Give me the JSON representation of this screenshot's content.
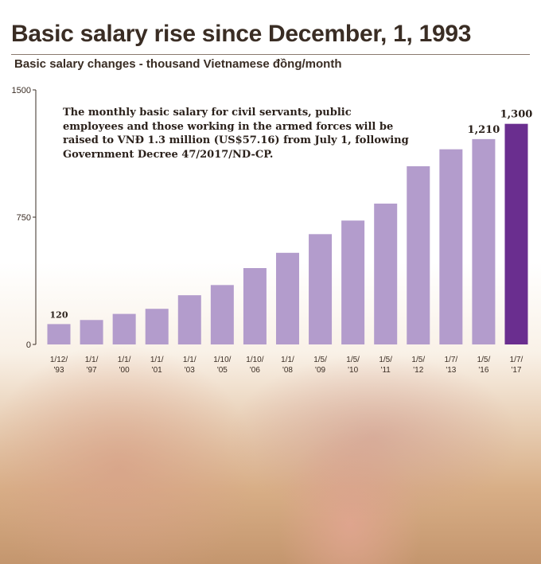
{
  "header": {
    "title": "Basic salary rise since December, 1, 1993",
    "subtitle": "Basic salary changes - thousand Vietnamese đồng/month"
  },
  "annotation": "The monthly basic salary for civil servants, public employees and those working in the armed forces will be raised to VNĐ 1.3 million  (US$57.16) from July 1, following Government Decree 47/2017/ND-CP.",
  "colors": {
    "bar": "#b39ccc",
    "bar_highlight": "#6a2e8f",
    "text": "#3a2d24"
  },
  "chart_data": {
    "type": "bar",
    "categories": [
      "1/12/\n'93",
      "1/1/\n'97",
      "1/1/\n'00",
      "1/1/\n'01",
      "1/1/\n'03",
      "1/10/\n'05",
      "1/10/\n'06",
      "1/1/\n'08",
      "1/5/\n'09",
      "1/5/\n'10",
      "1/5/\n'11",
      "1/5/\n'12",
      "1/7/\n'13",
      "1/5/\n'16",
      "1/7/\n'17"
    ],
    "values": [
      120,
      144,
      180,
      210,
      290,
      350,
      450,
      540,
      650,
      730,
      830,
      1050,
      1150,
      1210,
      1300
    ],
    "data_labels": [
      {
        "index": 0,
        "text": "120"
      },
      {
        "index": 13,
        "text": "1,210"
      },
      {
        "index": 14,
        "text": "1,300"
      }
    ],
    "highlight_index": 14,
    "ylim": [
      0,
      1500
    ],
    "yticks": [
      0,
      750,
      1500
    ],
    "ytick_labels": [
      "0",
      "750",
      "1500"
    ],
    "grid": false,
    "legend": "none"
  }
}
